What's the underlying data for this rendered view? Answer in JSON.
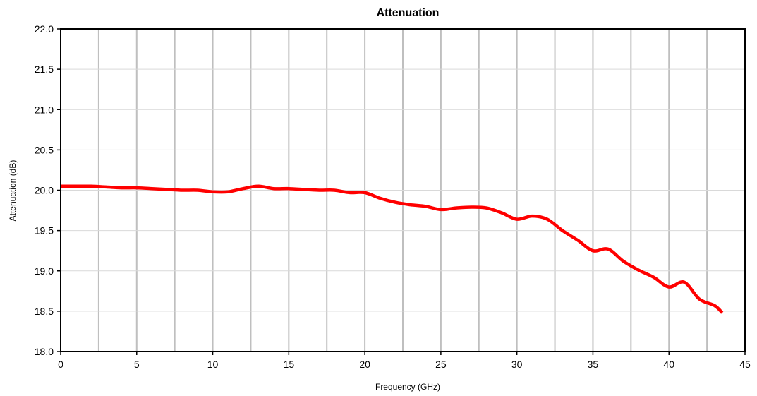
{
  "chart_data": {
    "type": "line",
    "title": "Attenuation",
    "xlabel": "Frequency (GHz)",
    "ylabel": "Attenuation (dB)",
    "xlim": [
      0,
      45
    ],
    "ylim": [
      18.0,
      22.0
    ],
    "x_ticks": [
      "0",
      "5",
      "10",
      "15",
      "20",
      "25",
      "30",
      "35",
      "40",
      "45"
    ],
    "y_ticks": [
      "18.0",
      "18.5",
      "19.0",
      "19.5",
      "20.0",
      "20.5",
      "21.0",
      "21.5",
      "22.0"
    ],
    "x_gridlines": [
      2.5,
      5,
      7.5,
      10,
      12.5,
      15,
      17.5,
      20,
      22.5,
      25,
      27.5,
      30,
      32.5,
      35,
      37.5,
      40,
      42.5
    ],
    "y_gridlines": [
      18.5,
      19.0,
      19.5,
      20.0,
      20.5,
      21.0,
      21.5
    ],
    "grid": true,
    "legend": "none",
    "series": [
      {
        "color": "#ff0000",
        "x": [
          0,
          1,
          2,
          3,
          4,
          5,
          6,
          7,
          8,
          9,
          10,
          11,
          12,
          13,
          14,
          15,
          16,
          17,
          18,
          19,
          20,
          21,
          22,
          23,
          24,
          25,
          26,
          27,
          28,
          29,
          30,
          31,
          32,
          33,
          34,
          35,
          36,
          37,
          38,
          39,
          40,
          41,
          42,
          43,
          43.5
        ],
        "y": [
          20.05,
          20.05,
          20.05,
          20.04,
          20.03,
          20.03,
          20.02,
          20.01,
          20.0,
          20.0,
          19.98,
          19.98,
          20.02,
          20.05,
          20.02,
          20.02,
          20.01,
          20.0,
          20.0,
          19.97,
          19.97,
          19.9,
          19.85,
          19.82,
          19.8,
          19.76,
          19.78,
          19.79,
          19.78,
          19.72,
          19.64,
          19.68,
          19.64,
          19.5,
          19.38,
          19.25,
          19.27,
          19.12,
          19.01,
          18.92,
          18.8,
          18.86,
          18.65,
          18.57,
          18.48
        ]
      }
    ]
  }
}
